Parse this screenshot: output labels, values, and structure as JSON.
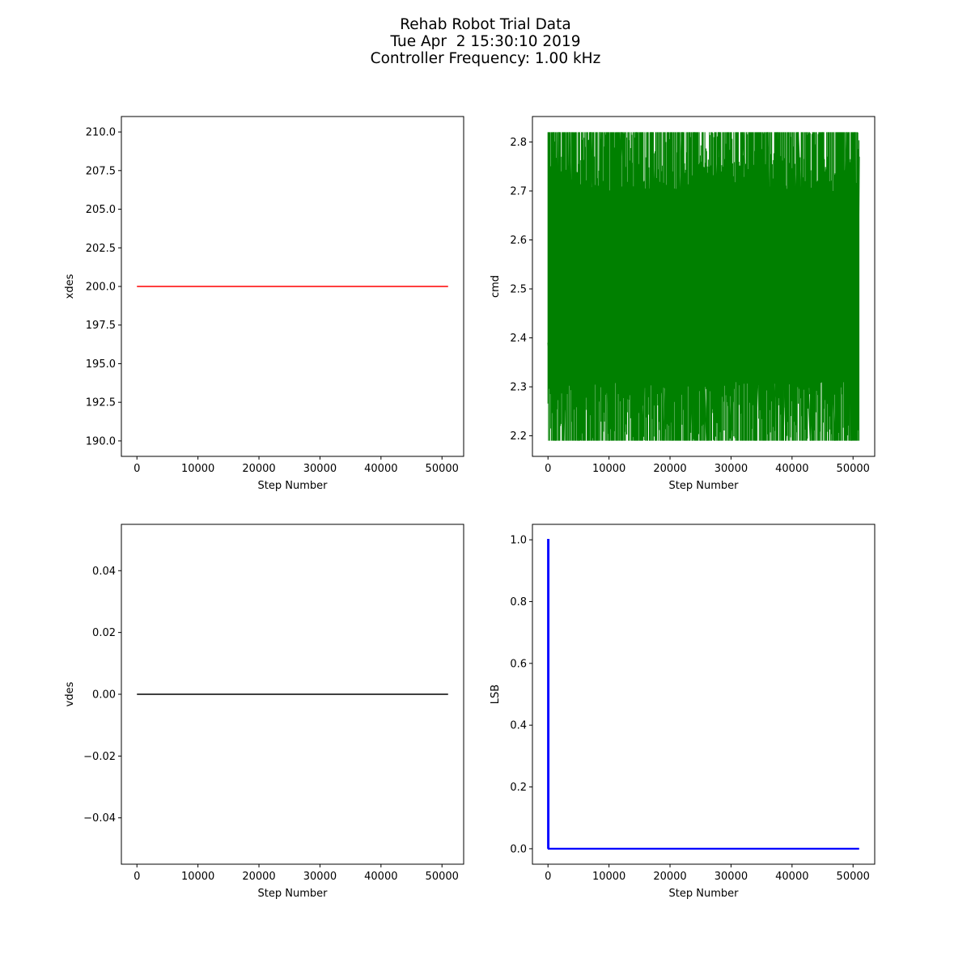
{
  "figure": {
    "title_lines": [
      "Rehab Robot Trial Data",
      "Tue Apr  2 15:30:10 2019",
      "Controller Frequency: 1.00 kHz"
    ]
  },
  "chart_data": [
    {
      "id": "xdes",
      "type": "line",
      "xlabel": "Step Number",
      "ylabel": "xdes",
      "xlim": [
        -2550,
        53550
      ],
      "ylim": [
        189.0,
        211.0
      ],
      "xticks": [
        0,
        10000,
        20000,
        30000,
        40000,
        50000
      ],
      "xtick_labels": [
        "0",
        "10000",
        "20000",
        "30000",
        "40000",
        "50000"
      ],
      "yticks": [
        190.0,
        192.5,
        195.0,
        197.5,
        200.0,
        202.5,
        205.0,
        207.5,
        210.0
      ],
      "ytick_labels": [
        "190.0",
        "192.5",
        "195.0",
        "197.5",
        "200.0",
        "202.5",
        "205.0",
        "207.5",
        "210.0"
      ],
      "color": "#ff0000",
      "series": [
        {
          "name": "xdes",
          "x": [
            0,
            51000
          ],
          "y": [
            200.0,
            200.0
          ]
        }
      ]
    },
    {
      "id": "cmd",
      "type": "line",
      "xlabel": "Step Number",
      "ylabel": "cmd",
      "xlim": [
        -2550,
        53550
      ],
      "ylim": [
        2.158,
        2.852
      ],
      "xticks": [
        0,
        10000,
        20000,
        30000,
        40000,
        50000
      ],
      "xtick_labels": [
        "0",
        "10000",
        "20000",
        "30000",
        "40000",
        "50000"
      ],
      "yticks": [
        2.2,
        2.3,
        2.4,
        2.5,
        2.6,
        2.7,
        2.8
      ],
      "ytick_labels": [
        "2.2",
        "2.3",
        "2.4",
        "2.5",
        "2.6",
        "2.7",
        "2.8"
      ],
      "color": "#008000",
      "series": [
        {
          "name": "cmd",
          "x": [
            0,
            200,
            400,
            600,
            900,
            1200,
            1800,
            2600,
            3500,
            5000,
            7000,
            8300,
            8500,
            10000,
            12000,
            14200,
            14500,
            15500,
            17000,
            19000,
            20000,
            20300,
            22000,
            23700,
            24000,
            26000,
            28000,
            30000,
            32000,
            34000,
            36000,
            37200,
            37600,
            39000,
            41000,
            43000,
            45000,
            47000,
            49000,
            49700,
            50300,
            50700,
            51000
          ],
          "y": [
            2.39,
            2.37,
            2.5,
            2.26,
            2.82,
            2.19,
            2.82,
            2.19,
            2.82,
            2.19,
            2.82,
            2.27,
            2.82,
            2.19,
            2.82,
            2.3,
            2.82,
            2.19,
            2.82,
            2.19,
            2.62,
            2.19,
            2.82,
            2.19,
            2.82,
            2.19,
            2.82,
            2.19,
            2.82,
            2.19,
            2.82,
            2.21,
            2.82,
            2.19,
            2.82,
            2.19,
            2.82,
            2.19,
            2.82,
            2.19,
            2.82,
            2.3,
            2.77
          ],
          "min": 2.19,
          "max": 2.82
        }
      ]
    },
    {
      "id": "vdes",
      "type": "line",
      "xlabel": "Step Number",
      "ylabel": "vdes",
      "xlim": [
        -2550,
        53550
      ],
      "ylim": [
        -0.055,
        0.055
      ],
      "xticks": [
        0,
        10000,
        20000,
        30000,
        40000,
        50000
      ],
      "xtick_labels": [
        "0",
        "10000",
        "20000",
        "30000",
        "40000",
        "50000"
      ],
      "yticks": [
        -0.04,
        -0.02,
        0.0,
        0.02,
        0.04
      ],
      "ytick_labels": [
        "−0.04",
        "−0.02",
        "0.00",
        "0.02",
        "0.04"
      ],
      "color": "#000000",
      "series": [
        {
          "name": "vdes",
          "x": [
            0,
            51000
          ],
          "y": [
            0.0,
            0.0
          ]
        }
      ]
    },
    {
      "id": "lsb",
      "type": "line",
      "xlabel": "Step Number",
      "ylabel": "LSB",
      "xlim": [
        -2550,
        53550
      ],
      "ylim": [
        -0.05,
        1.05
      ],
      "xticks": [
        0,
        10000,
        20000,
        30000,
        40000,
        50000
      ],
      "xtick_labels": [
        "0",
        "10000",
        "20000",
        "30000",
        "40000",
        "50000"
      ],
      "yticks": [
        0.0,
        0.2,
        0.4,
        0.6,
        0.8,
        1.0
      ],
      "ytick_labels": [
        "0.0",
        "0.2",
        "0.4",
        "0.6",
        "0.8",
        "1.0"
      ],
      "color": "#0000ff",
      "series": [
        {
          "name": "LSB",
          "x": [
            0,
            0,
            100,
            100,
            51000
          ],
          "y": [
            0,
            1,
            1,
            0,
            0
          ]
        }
      ]
    }
  ]
}
